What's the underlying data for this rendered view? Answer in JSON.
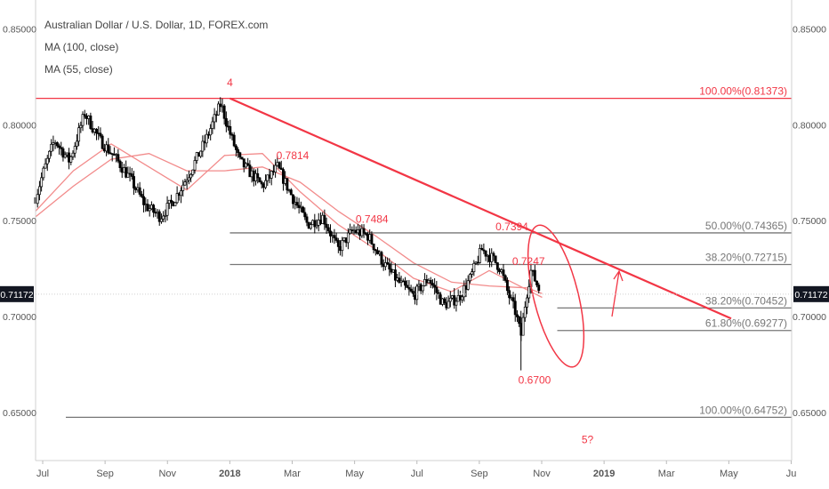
{
  "chart_data": {
    "type": "candlestick",
    "title": "Australian Dollar / U.S. Dollar, 1D, FOREX.com",
    "indicators": [
      "MA (100, close)",
      "MA (55, close)"
    ],
    "ylim": [
      0.625,
      0.865
    ],
    "y_ticks": [
      "0.65000",
      "0.70000",
      "0.75000",
      "0.80000",
      "0.85000"
    ],
    "x_ticks": [
      "Jul",
      "Sep",
      "Nov",
      "2018",
      "Mar",
      "May",
      "Jul",
      "Sep",
      "Nov",
      "2019",
      "Mar",
      "May",
      "Ju"
    ],
    "last_price": "0.71172",
    "grid": false,
    "colors": {
      "accent": "#f23645",
      "ma_line": "#f28b8b",
      "level_line": "#777777",
      "price_badge": "#131722",
      "candle": "#000000"
    },
    "price_series": [
      [
        0.0,
        0.762
      ],
      [
        0.01,
        0.775
      ],
      [
        0.025,
        0.792
      ],
      [
        0.045,
        0.781
      ],
      [
        0.065,
        0.806
      ],
      [
        0.085,
        0.792
      ],
      [
        0.105,
        0.783
      ],
      [
        0.125,
        0.772
      ],
      [
        0.145,
        0.758
      ],
      [
        0.165,
        0.752
      ],
      [
        0.185,
        0.762
      ],
      [
        0.205,
        0.776
      ],
      [
        0.225,
        0.792
      ],
      [
        0.245,
        0.811
      ],
      [
        0.255,
        0.798
      ],
      [
        0.27,
        0.781
      ],
      [
        0.3,
        0.768
      ],
      [
        0.32,
        0.778
      ],
      [
        0.34,
        0.762
      ],
      [
        0.36,
        0.748
      ],
      [
        0.38,
        0.752
      ],
      [
        0.4,
        0.735
      ],
      [
        0.42,
        0.745
      ],
      [
        0.44,
        0.742
      ],
      [
        0.46,
        0.728
      ],
      [
        0.48,
        0.718
      ],
      [
        0.5,
        0.711
      ],
      [
        0.52,
        0.72
      ],
      [
        0.54,
        0.706
      ],
      [
        0.56,
        0.71
      ],
      [
        0.575,
        0.72
      ],
      [
        0.59,
        0.735
      ],
      [
        0.605,
        0.73
      ],
      [
        0.615,
        0.725
      ],
      [
        0.625,
        0.712
      ],
      [
        0.635,
        0.702
      ],
      [
        0.642,
        0.69
      ],
      [
        0.648,
        0.708
      ],
      [
        0.655,
        0.724
      ],
      [
        0.662,
        0.718
      ],
      [
        0.668,
        0.712
      ]
    ],
    "ma_100": [
      [
        0.0,
        0.752
      ],
      [
        0.05,
        0.768
      ],
      [
        0.1,
        0.782
      ],
      [
        0.15,
        0.785
      ],
      [
        0.2,
        0.776
      ],
      [
        0.25,
        0.776
      ],
      [
        0.3,
        0.778
      ],
      [
        0.35,
        0.77
      ],
      [
        0.4,
        0.755
      ],
      [
        0.45,
        0.742
      ],
      [
        0.5,
        0.728
      ],
      [
        0.55,
        0.718
      ],
      [
        0.6,
        0.716
      ],
      [
        0.65,
        0.715
      ],
      [
        0.67,
        0.712
      ]
    ],
    "ma_55": [
      [
        0.0,
        0.755
      ],
      [
        0.05,
        0.776
      ],
      [
        0.1,
        0.79
      ],
      [
        0.15,
        0.778
      ],
      [
        0.2,
        0.766
      ],
      [
        0.25,
        0.784
      ],
      [
        0.3,
        0.785
      ],
      [
        0.35,
        0.765
      ],
      [
        0.4,
        0.748
      ],
      [
        0.45,
        0.735
      ],
      [
        0.5,
        0.72
      ],
      [
        0.55,
        0.713
      ],
      [
        0.6,
        0.724
      ],
      [
        0.65,
        0.714
      ],
      [
        0.67,
        0.71
      ]
    ],
    "trendline": [
      [
        0.257,
        0.81373
      ],
      [
        0.92,
        0.699
      ]
    ],
    "levels": [
      {
        "label": "100.00%(0.81373)",
        "value": 0.81373,
        "x_start": 0.0,
        "color": "#f23645"
      },
      {
        "label": "50.00%(0.74365)",
        "value": 0.74365,
        "x_start": 0.257,
        "color": "#777777"
      },
      {
        "label": "38.20%(0.72715)",
        "value": 0.72715,
        "x_start": 0.257,
        "color": "#777777"
      },
      {
        "label": "38.20%(0.70452)",
        "value": 0.70452,
        "x_start": 0.69,
        "color": "#777777"
      },
      {
        "label": "61.80%(0.69277)",
        "value": 0.69277,
        "x_start": 0.69,
        "color": "#777777"
      },
      {
        "label": "100.00%(0.64752)",
        "value": 0.64752,
        "x_start": 0.04,
        "color": "#777777"
      }
    ],
    "annotations": [
      {
        "text": "4",
        "x": 0.257,
        "y": 0.82
      },
      {
        "text": "0.7814",
        "x": 0.34,
        "y": 0.782
      },
      {
        "text": "0.7484",
        "x": 0.445,
        "y": 0.749
      },
      {
        "text": "0.7394",
        "x": 0.63,
        "y": 0.745
      },
      {
        "text": "0.7247",
        "x": 0.652,
        "y": 0.727
      },
      {
        "text": "0.6700",
        "x": 0.66,
        "y": 0.665
      },
      {
        "text": "5?",
        "x": 0.73,
        "y": 0.634
      }
    ]
  }
}
